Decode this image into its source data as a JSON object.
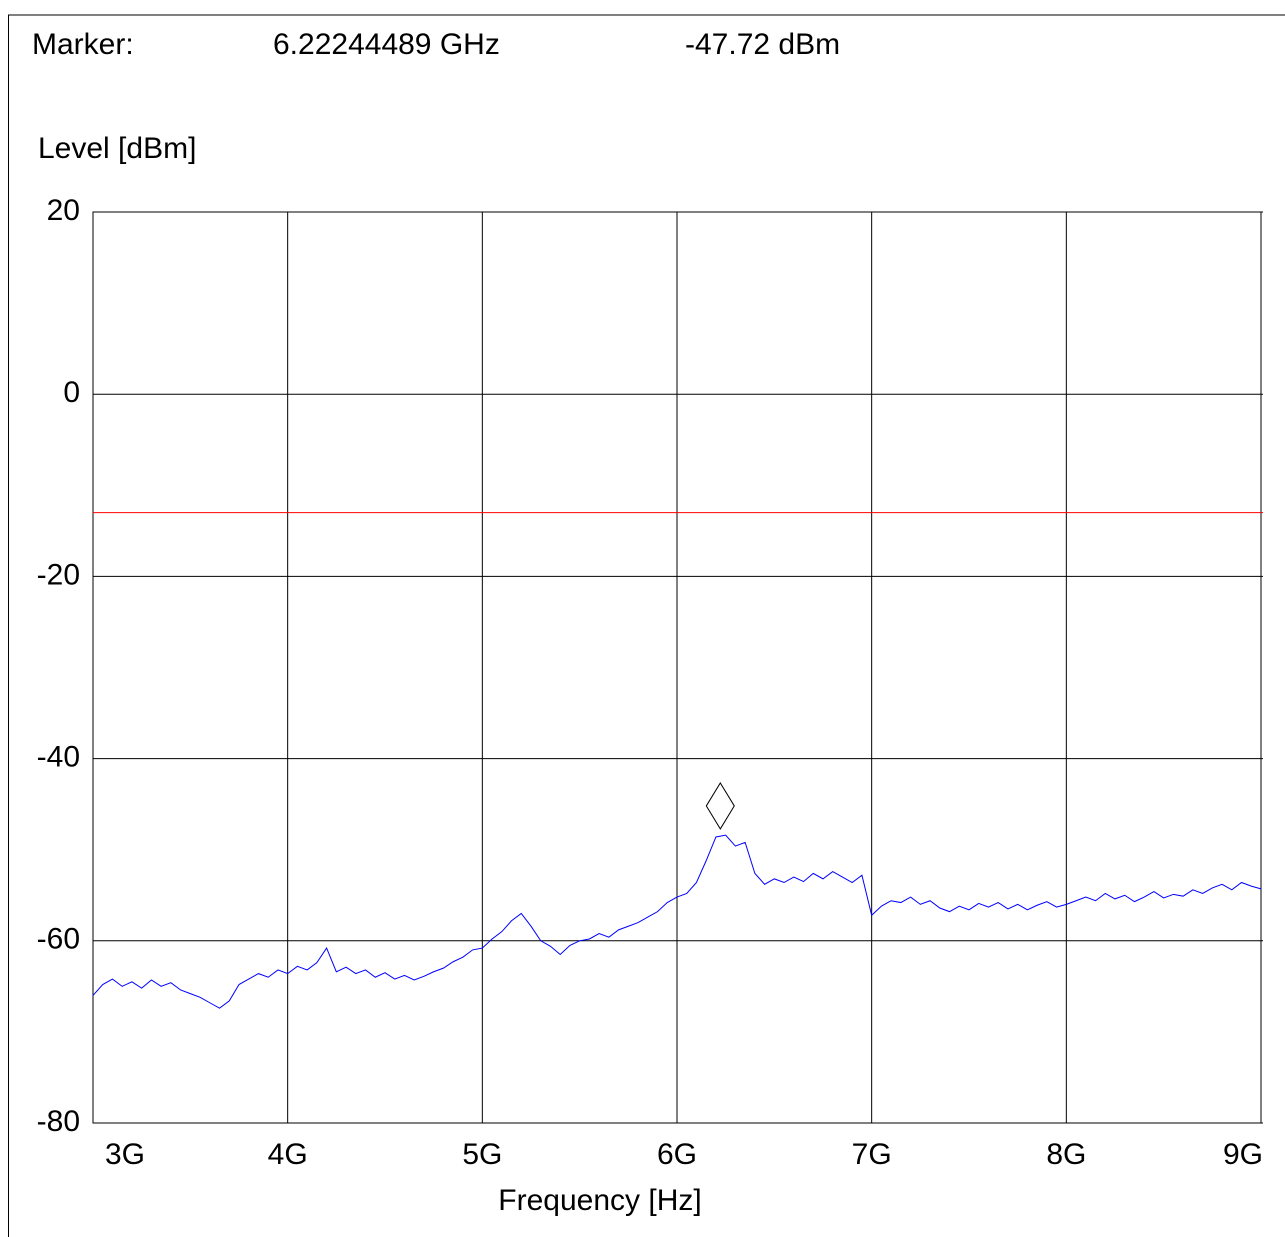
{
  "chart_data": {
    "type": "line",
    "marker": {
      "label": "Marker:",
      "x": 6.22244489,
      "y": -47.72,
      "x_label": "6.22244489 GHz",
      "y_label": "-47.72 dBm"
    },
    "ylabel": "Level [dBm]",
    "xlabel": "Frequency [Hz]",
    "xlim": [
      3,
      9
    ],
    "xticks": [
      {
        "value": 3,
        "label": "3G"
      },
      {
        "value": 4,
        "label": "4G"
      },
      {
        "value": 5,
        "label": "5G"
      },
      {
        "value": 6,
        "label": "6G"
      },
      {
        "value": 7,
        "label": "7G"
      },
      {
        "value": 8,
        "label": "8G"
      },
      {
        "value": 9,
        "label": "9G"
      }
    ],
    "ylim": [
      -80,
      20
    ],
    "yticks": [
      -80,
      -60,
      -40,
      -20,
      0,
      20
    ],
    "grid": true,
    "limit_line": -13,
    "limit_color": "#ff0000",
    "x": [
      3.0,
      3.05,
      3.1,
      3.15,
      3.2,
      3.25,
      3.3,
      3.35,
      3.4,
      3.45,
      3.5,
      3.55,
      3.6,
      3.65,
      3.7,
      3.75,
      3.8,
      3.85,
      3.9,
      3.95,
      4.0,
      4.05,
      4.1,
      4.15,
      4.2,
      4.25,
      4.3,
      4.35,
      4.4,
      4.45,
      4.5,
      4.55,
      4.6,
      4.65,
      4.7,
      4.75,
      4.8,
      4.85,
      4.9,
      4.95,
      5.0,
      5.05,
      5.1,
      5.15,
      5.2,
      5.25,
      5.3,
      5.35,
      5.4,
      5.45,
      5.5,
      5.55,
      5.6,
      5.65,
      5.7,
      5.75,
      5.8,
      5.85,
      5.9,
      5.95,
      6.0,
      6.05,
      6.1,
      6.15,
      6.2,
      6.25,
      6.3,
      6.35,
      6.4,
      6.45,
      6.5,
      6.55,
      6.6,
      6.65,
      6.7,
      6.75,
      6.8,
      6.85,
      6.9,
      6.95,
      7.0,
      7.05,
      7.1,
      7.15,
      7.2,
      7.25,
      7.3,
      7.35,
      7.4,
      7.45,
      7.5,
      7.55,
      7.6,
      7.65,
      7.7,
      7.75,
      7.8,
      7.85,
      7.9,
      7.95,
      8.0,
      8.05,
      8.1,
      8.15,
      8.2,
      8.25,
      8.3,
      8.35,
      8.4,
      8.45,
      8.5,
      8.55,
      8.6,
      8.65,
      8.7,
      8.75,
      8.8,
      8.85,
      8.9,
      8.95,
      9.0
    ],
    "series": [
      {
        "color": "#0000ff",
        "values": [
          -66.0,
          -64.8,
          -64.2,
          -65.0,
          -64.5,
          -65.2,
          -64.3,
          -65.0,
          -64.6,
          -65.4,
          -65.8,
          -66.2,
          -66.8,
          -67.4,
          -66.6,
          -64.8,
          -64.2,
          -63.6,
          -64.0,
          -63.2,
          -63.6,
          -62.8,
          -63.2,
          -62.4,
          -60.8,
          -63.4,
          -62.9,
          -63.6,
          -63.2,
          -64.0,
          -63.5,
          -64.2,
          -63.8,
          -64.3,
          -63.9,
          -63.4,
          -63.0,
          -62.3,
          -61.8,
          -61.0,
          -60.8,
          -59.8,
          -59.0,
          -57.8,
          -57.0,
          -58.4,
          -60.0,
          -60.6,
          -61.5,
          -60.5,
          -60.0,
          -59.8,
          -59.2,
          -59.6,
          -58.8,
          -58.4,
          -58.0,
          -57.4,
          -56.8,
          -55.8,
          -55.2,
          -54.8,
          -53.6,
          -51.2,
          -48.6,
          -48.4,
          -49.6,
          -49.2,
          -52.6,
          -53.8,
          -53.2,
          -53.6,
          -53.0,
          -53.5,
          -52.6,
          -53.2,
          -52.4,
          -53.0,
          -53.6,
          -52.8,
          -57.2,
          -56.2,
          -55.6,
          -55.8,
          -55.2,
          -56.0,
          -55.6,
          -56.4,
          -56.8,
          -56.2,
          -56.6,
          -55.9,
          -56.3,
          -55.8,
          -56.5,
          -56.0,
          -56.6,
          -56.1,
          -55.7,
          -56.3,
          -56.0,
          -55.6,
          -55.2,
          -55.6,
          -54.8,
          -55.4,
          -55.0,
          -55.7,
          -55.2,
          -54.6,
          -55.3,
          -54.9,
          -55.1,
          -54.4,
          -54.8,
          -54.2,
          -53.8,
          -54.4,
          -53.6,
          -54.0,
          -54.3
        ]
      }
    ]
  }
}
